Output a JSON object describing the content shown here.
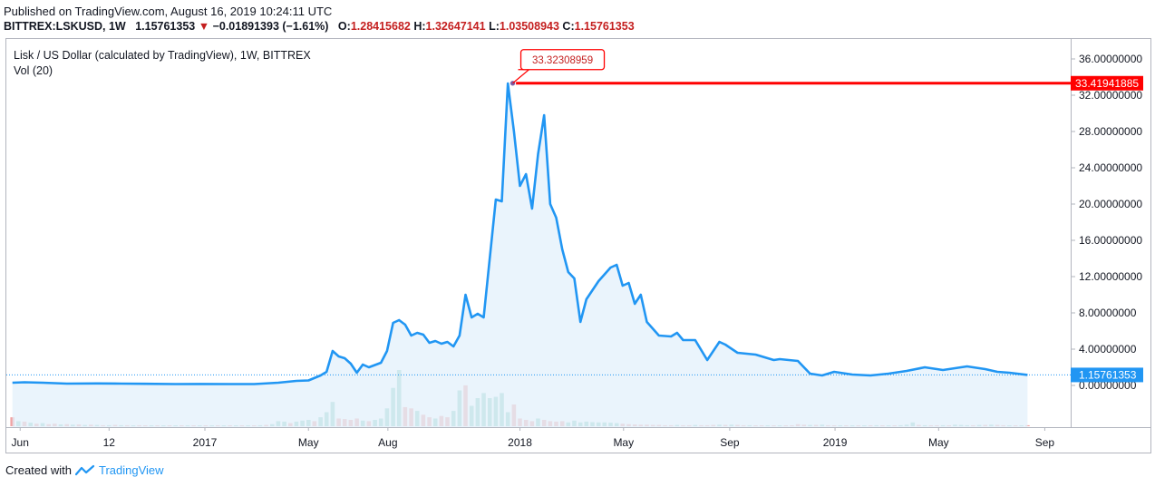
{
  "header": {
    "published": "Published on TradingView.com, August 16, 2019 10:24:11 UTC",
    "symbol": "BITTREX:LSKUSD, 1W",
    "last": "1.15761353",
    "change_arrow": "▼",
    "change": "−0.01891393 (−1.61%)",
    "o_label": "O:",
    "o_value": "1.28415682",
    "h_label": "H:",
    "h_value": "1.32647141",
    "l_label": "L:",
    "l_value": "1.03508943",
    "c_label": "C:",
    "c_value": "1.15761353"
  },
  "legend": {
    "series_title": "Lisk / US Dollar (calculated by TradingView), 1W, BITTREX",
    "volume_title": "Vol (20)"
  },
  "footer": {
    "created_with": "Created with",
    "brand": "TradingView"
  },
  "colors": {
    "line": "#2196f3",
    "area_fill": "#e3f0fb",
    "high_marker": "#ff0000",
    "vol_up": "#8fcfc2",
    "vol_down": "#f0a3a3",
    "last_price_tag": "#2196f3"
  },
  "chart_data": {
    "type": "line",
    "title": "Lisk / US Dollar (calculated by TradingView), 1W, BITTREX",
    "x_ticks": [
      "Jun",
      "12",
      "2017",
      "May",
      "Aug",
      "2018",
      "May",
      "Sep",
      "2019",
      "May",
      "Sep"
    ],
    "y_ticks": [
      "36.00000000",
      "32.00000000",
      "28.00000000",
      "24.00000000",
      "20.00000000",
      "16.00000000",
      "12.00000000",
      "8.00000000",
      "4.00000000",
      "0.00000000"
    ],
    "ylim": [
      -1.2,
      37.5
    ],
    "xlim": [
      "2016-05-16",
      "2019-10-01"
    ],
    "last_price_label": "1.15761353",
    "last_price": 1.15761353,
    "high_marker_label": "33.41941885",
    "high_marker_value": 33.41941885,
    "annotation_label": "33.32308959",
    "annotation_value": 33.32308959,
    "annotation_date": "2018-01-01",
    "series": [
      {
        "values": [
          [
            "2016-05-23",
            0.3
          ],
          [
            "2016-06-06",
            0.35
          ],
          [
            "2016-06-27",
            0.3
          ],
          [
            "2016-07-25",
            0.2
          ],
          [
            "2016-08-29",
            0.22
          ],
          [
            "2016-09-26",
            0.2
          ],
          [
            "2016-10-24",
            0.18
          ],
          [
            "2016-11-28",
            0.15
          ],
          [
            "2016-12-26",
            0.16
          ],
          [
            "2017-01-30",
            0.15
          ],
          [
            "2017-02-27",
            0.15
          ],
          [
            "2017-03-27",
            0.3
          ],
          [
            "2017-04-17",
            0.5
          ],
          [
            "2017-05-01",
            0.55
          ],
          [
            "2017-05-15",
            1.1
          ],
          [
            "2017-05-22",
            1.5
          ],
          [
            "2017-05-29",
            3.8
          ],
          [
            "2017-06-05",
            3.2
          ],
          [
            "2017-06-12",
            3.0
          ],
          [
            "2017-06-19",
            2.4
          ],
          [
            "2017-06-26",
            1.4
          ],
          [
            "2017-07-03",
            2.3
          ],
          [
            "2017-07-10",
            2.0
          ],
          [
            "2017-07-24",
            2.5
          ],
          [
            "2017-07-31",
            3.8
          ],
          [
            "2017-08-07",
            6.9
          ],
          [
            "2017-08-14",
            7.2
          ],
          [
            "2017-08-21",
            6.7
          ],
          [
            "2017-08-28",
            5.5
          ],
          [
            "2017-09-04",
            5.8
          ],
          [
            "2017-09-11",
            5.6
          ],
          [
            "2017-09-18",
            4.7
          ],
          [
            "2017-09-25",
            4.9
          ],
          [
            "2017-10-02",
            4.6
          ],
          [
            "2017-10-09",
            4.8
          ],
          [
            "2017-10-16",
            4.3
          ],
          [
            "2017-10-23",
            5.5
          ],
          [
            "2017-10-30",
            10.0
          ],
          [
            "2017-11-06",
            7.5
          ],
          [
            "2017-11-13",
            7.9
          ],
          [
            "2017-11-20",
            7.5
          ],
          [
            "2017-12-04",
            20.5
          ],
          [
            "2017-12-11",
            20.3
          ],
          [
            "2017-12-18",
            33.3
          ],
          [
            "2017-12-25",
            28.0
          ],
          [
            "2018-01-01",
            22.0
          ],
          [
            "2018-01-08",
            23.3
          ],
          [
            "2018-01-15",
            19.5
          ],
          [
            "2018-01-22",
            25.5
          ],
          [
            "2018-01-29",
            29.8
          ],
          [
            "2018-02-05",
            20.0
          ],
          [
            "2018-02-12",
            18.5
          ],
          [
            "2018-02-19",
            15.0
          ],
          [
            "2018-02-26",
            12.5
          ],
          [
            "2018-03-05",
            11.8
          ],
          [
            "2018-03-12",
            7.0
          ],
          [
            "2018-03-19",
            9.5
          ],
          [
            "2018-04-02",
            11.5
          ],
          [
            "2018-04-16",
            13.0
          ],
          [
            "2018-04-23",
            13.3
          ],
          [
            "2018-04-30",
            11.0
          ],
          [
            "2018-05-07",
            11.3
          ],
          [
            "2018-05-14",
            9.0
          ],
          [
            "2018-05-21",
            10.0
          ],
          [
            "2018-05-28",
            7.0
          ],
          [
            "2018-06-11",
            5.5
          ],
          [
            "2018-06-25",
            5.4
          ],
          [
            "2018-07-02",
            5.8
          ],
          [
            "2018-07-09",
            5.0
          ],
          [
            "2018-07-23",
            5.0
          ],
          [
            "2018-08-06",
            2.8
          ],
          [
            "2018-08-20",
            4.8
          ],
          [
            "2018-08-27",
            4.5
          ],
          [
            "2018-09-10",
            3.6
          ],
          [
            "2018-10-01",
            3.4
          ],
          [
            "2018-10-22",
            2.8
          ],
          [
            "2018-10-29",
            2.9
          ],
          [
            "2018-11-19",
            2.7
          ],
          [
            "2018-12-03",
            1.3
          ],
          [
            "2018-12-17",
            1.1
          ],
          [
            "2018-12-31",
            1.5
          ],
          [
            "2019-01-21",
            1.2
          ],
          [
            "2019-02-11",
            1.1
          ],
          [
            "2019-03-04",
            1.3
          ],
          [
            "2019-03-25",
            1.6
          ],
          [
            "2019-04-15",
            2.0
          ],
          [
            "2019-05-06",
            1.7
          ],
          [
            "2019-06-03",
            2.1
          ],
          [
            "2019-06-24",
            1.8
          ],
          [
            "2019-07-08",
            1.5
          ],
          [
            "2019-07-22",
            1.4
          ],
          [
            "2019-08-12",
            1.15761353
          ]
        ]
      }
    ],
    "volume": [
      [
        "2016-05-23",
        0.35,
        "down"
      ],
      [
        "2016-05-30",
        0.2,
        "up"
      ],
      [
        "2016-06-06",
        0.18,
        "down"
      ],
      [
        "2016-06-13",
        0.14,
        "up"
      ],
      [
        "2016-06-20",
        0.1,
        "down"
      ],
      [
        "2016-06-27",
        0.12,
        "up"
      ],
      [
        "2016-07-04",
        0.08,
        "down"
      ],
      [
        "2016-07-11",
        0.1,
        "down"
      ],
      [
        "2016-07-18",
        0.07,
        "up"
      ],
      [
        "2016-07-25",
        0.08,
        "down"
      ],
      [
        "2016-08-01",
        0.06,
        "up"
      ],
      [
        "2016-08-08",
        0.07,
        "down"
      ],
      [
        "2016-08-15",
        0.05,
        "up"
      ],
      [
        "2016-08-22",
        0.06,
        "down"
      ],
      [
        "2016-08-29",
        0.05,
        "up"
      ],
      [
        "2016-09-05",
        0.04,
        "down"
      ],
      [
        "2016-09-12",
        0.04,
        "up"
      ],
      [
        "2016-09-19",
        0.05,
        "down"
      ],
      [
        "2016-09-26",
        0.04,
        "up"
      ],
      [
        "2016-10-03",
        0.04,
        "down"
      ],
      [
        "2016-10-10",
        0.03,
        "up"
      ],
      [
        "2016-10-17",
        0.04,
        "down"
      ],
      [
        "2016-10-24",
        0.03,
        "down"
      ],
      [
        "2016-10-31",
        0.03,
        "up"
      ],
      [
        "2016-11-07",
        0.03,
        "down"
      ],
      [
        "2016-11-14",
        0.02,
        "up"
      ],
      [
        "2016-11-21",
        0.03,
        "down"
      ],
      [
        "2016-11-28",
        0.02,
        "up"
      ],
      [
        "2016-12-05",
        0.02,
        "down"
      ],
      [
        "2016-12-12",
        0.02,
        "up"
      ],
      [
        "2016-12-19",
        0.02,
        "down"
      ],
      [
        "2016-12-26",
        0.02,
        "up"
      ],
      [
        "2017-01-02",
        0.03,
        "down"
      ],
      [
        "2017-01-09",
        0.02,
        "up"
      ],
      [
        "2017-01-16",
        0.02,
        "down"
      ],
      [
        "2017-01-23",
        0.02,
        "up"
      ],
      [
        "2017-01-30",
        0.02,
        "down"
      ],
      [
        "2017-02-06",
        0.02,
        "up"
      ],
      [
        "2017-02-13",
        0.02,
        "down"
      ],
      [
        "2017-02-20",
        0.03,
        "up"
      ],
      [
        "2017-02-27",
        0.03,
        "down"
      ],
      [
        "2017-03-06",
        0.04,
        "up"
      ],
      [
        "2017-03-13",
        0.05,
        "down"
      ],
      [
        "2017-03-20",
        0.08,
        "up"
      ],
      [
        "2017-03-27",
        0.2,
        "up"
      ],
      [
        "2017-04-03",
        0.18,
        "up"
      ],
      [
        "2017-04-10",
        0.12,
        "down"
      ],
      [
        "2017-04-17",
        0.18,
        "up"
      ],
      [
        "2017-04-24",
        0.22,
        "up"
      ],
      [
        "2017-05-01",
        0.25,
        "up"
      ],
      [
        "2017-05-08",
        0.2,
        "down"
      ],
      [
        "2017-05-15",
        0.35,
        "up"
      ],
      [
        "2017-05-22",
        0.55,
        "up"
      ],
      [
        "2017-05-29",
        0.95,
        "up"
      ],
      [
        "2017-06-05",
        0.3,
        "down"
      ],
      [
        "2017-06-12",
        0.28,
        "down"
      ],
      [
        "2017-06-19",
        0.25,
        "down"
      ],
      [
        "2017-06-26",
        0.3,
        "down"
      ],
      [
        "2017-07-03",
        0.22,
        "up"
      ],
      [
        "2017-07-10",
        0.2,
        "down"
      ],
      [
        "2017-07-17",
        0.25,
        "up"
      ],
      [
        "2017-07-24",
        0.3,
        "up"
      ],
      [
        "2017-07-31",
        0.7,
        "up"
      ],
      [
        "2017-08-07",
        1.5,
        "up"
      ],
      [
        "2017-08-14",
        2.2,
        "up"
      ],
      [
        "2017-08-21",
        0.75,
        "down"
      ],
      [
        "2017-08-28",
        0.7,
        "down"
      ],
      [
        "2017-09-04",
        0.6,
        "up"
      ],
      [
        "2017-09-11",
        0.45,
        "down"
      ],
      [
        "2017-09-18",
        0.35,
        "down"
      ],
      [
        "2017-09-25",
        0.3,
        "up"
      ],
      [
        "2017-10-02",
        0.4,
        "down"
      ],
      [
        "2017-10-09",
        0.35,
        "down"
      ],
      [
        "2017-10-16",
        0.6,
        "up"
      ],
      [
        "2017-10-23",
        1.4,
        "up"
      ],
      [
        "2017-10-30",
        1.6,
        "down"
      ],
      [
        "2017-11-06",
        0.8,
        "up"
      ],
      [
        "2017-11-13",
        1.1,
        "up"
      ],
      [
        "2017-11-20",
        1.3,
        "up"
      ],
      [
        "2017-11-27",
        1.1,
        "up"
      ],
      [
        "2017-12-04",
        1.15,
        "up"
      ],
      [
        "2017-12-11",
        1.3,
        "up"
      ],
      [
        "2017-12-18",
        0.55,
        "up"
      ],
      [
        "2017-12-25",
        0.85,
        "down"
      ],
      [
        "2018-01-01",
        0.3,
        "down"
      ],
      [
        "2018-01-08",
        0.25,
        "down"
      ],
      [
        "2018-01-15",
        0.2,
        "down"
      ],
      [
        "2018-01-22",
        0.3,
        "up"
      ],
      [
        "2018-01-29",
        0.25,
        "down"
      ],
      [
        "2018-02-05",
        0.2,
        "down"
      ],
      [
        "2018-02-12",
        0.18,
        "down"
      ],
      [
        "2018-02-19",
        0.2,
        "down"
      ],
      [
        "2018-02-26",
        0.15,
        "up"
      ],
      [
        "2018-03-05",
        0.22,
        "up"
      ],
      [
        "2018-03-12",
        0.15,
        "up"
      ],
      [
        "2018-03-19",
        0.18,
        "up"
      ],
      [
        "2018-03-26",
        0.16,
        "up"
      ],
      [
        "2018-04-02",
        0.15,
        "up"
      ],
      [
        "2018-04-09",
        0.15,
        "up"
      ],
      [
        "2018-04-16",
        0.14,
        "up"
      ],
      [
        "2018-04-23",
        0.12,
        "up"
      ],
      [
        "2018-04-30",
        0.1,
        "down"
      ],
      [
        "2018-05-07",
        0.08,
        "down"
      ],
      [
        "2018-05-14",
        0.07,
        "down"
      ],
      [
        "2018-05-21",
        0.06,
        "down"
      ],
      [
        "2018-05-28",
        0.06,
        "down"
      ],
      [
        "2018-06-04",
        0.05,
        "down"
      ],
      [
        "2018-06-11",
        0.05,
        "down"
      ],
      [
        "2018-06-18",
        0.04,
        "down"
      ],
      [
        "2018-06-25",
        0.04,
        "down"
      ],
      [
        "2018-07-02",
        0.05,
        "up"
      ],
      [
        "2018-07-09",
        0.04,
        "down"
      ],
      [
        "2018-07-16",
        0.04,
        "down"
      ],
      [
        "2018-07-23",
        0.05,
        "up"
      ],
      [
        "2018-07-30",
        0.04,
        "down"
      ],
      [
        "2018-08-06",
        0.04,
        "down"
      ],
      [
        "2018-08-13",
        0.05,
        "down"
      ],
      [
        "2018-08-20",
        0.06,
        "up"
      ],
      [
        "2018-08-27",
        0.05,
        "down"
      ],
      [
        "2018-09-03",
        0.06,
        "up"
      ],
      [
        "2018-09-10",
        0.05,
        "down"
      ],
      [
        "2018-09-17",
        0.04,
        "down"
      ],
      [
        "2018-09-24",
        0.04,
        "up"
      ],
      [
        "2018-10-01",
        0.03,
        "down"
      ],
      [
        "2018-10-08",
        0.03,
        "down"
      ],
      [
        "2018-10-15",
        0.03,
        "up"
      ],
      [
        "2018-10-22",
        0.03,
        "down"
      ],
      [
        "2018-10-29",
        0.03,
        "up"
      ],
      [
        "2018-11-05",
        0.03,
        "down"
      ],
      [
        "2018-11-12",
        0.03,
        "down"
      ],
      [
        "2018-11-19",
        0.08,
        "down"
      ],
      [
        "2018-11-26",
        0.06,
        "down"
      ],
      [
        "2018-12-03",
        0.05,
        "up"
      ],
      [
        "2018-12-10",
        0.05,
        "down"
      ],
      [
        "2018-12-17",
        0.06,
        "up"
      ],
      [
        "2018-12-24",
        0.04,
        "down"
      ],
      [
        "2018-12-31",
        0.03,
        "down"
      ],
      [
        "2019-01-07",
        0.03,
        "up"
      ],
      [
        "2019-01-14",
        0.03,
        "down"
      ],
      [
        "2019-01-21",
        0.03,
        "up"
      ],
      [
        "2019-01-28",
        0.02,
        "down"
      ],
      [
        "2019-02-04",
        0.03,
        "up"
      ],
      [
        "2019-02-11",
        0.03,
        "down"
      ],
      [
        "2019-02-18",
        0.04,
        "up"
      ],
      [
        "2019-02-25",
        0.03,
        "down"
      ],
      [
        "2019-03-04",
        0.03,
        "up"
      ],
      [
        "2019-03-11",
        0.03,
        "down"
      ],
      [
        "2019-03-18",
        0.04,
        "up"
      ],
      [
        "2019-03-25",
        0.06,
        "up"
      ],
      [
        "2019-04-01",
        0.15,
        "up"
      ],
      [
        "2019-04-08",
        0.05,
        "down"
      ],
      [
        "2019-04-15",
        0.04,
        "up"
      ],
      [
        "2019-04-22",
        0.03,
        "down"
      ],
      [
        "2019-04-29",
        0.03,
        "down"
      ],
      [
        "2019-05-06",
        0.04,
        "up"
      ],
      [
        "2019-05-13",
        0.03,
        "down"
      ],
      [
        "2019-05-20",
        0.06,
        "up"
      ],
      [
        "2019-05-27",
        0.05,
        "up"
      ],
      [
        "2019-06-03",
        0.04,
        "up"
      ],
      [
        "2019-06-10",
        0.04,
        "down"
      ],
      [
        "2019-06-17",
        0.05,
        "up"
      ],
      [
        "2019-06-24",
        0.05,
        "down"
      ],
      [
        "2019-07-01",
        0.06,
        "up"
      ],
      [
        "2019-07-08",
        0.05,
        "down"
      ],
      [
        "2019-07-15",
        0.04,
        "down"
      ],
      [
        "2019-07-22",
        0.03,
        "up"
      ],
      [
        "2019-07-29",
        0.03,
        "down"
      ],
      [
        "2019-08-05",
        0.03,
        "up"
      ],
      [
        "2019-08-12",
        0.04,
        "down"
      ]
    ]
  }
}
